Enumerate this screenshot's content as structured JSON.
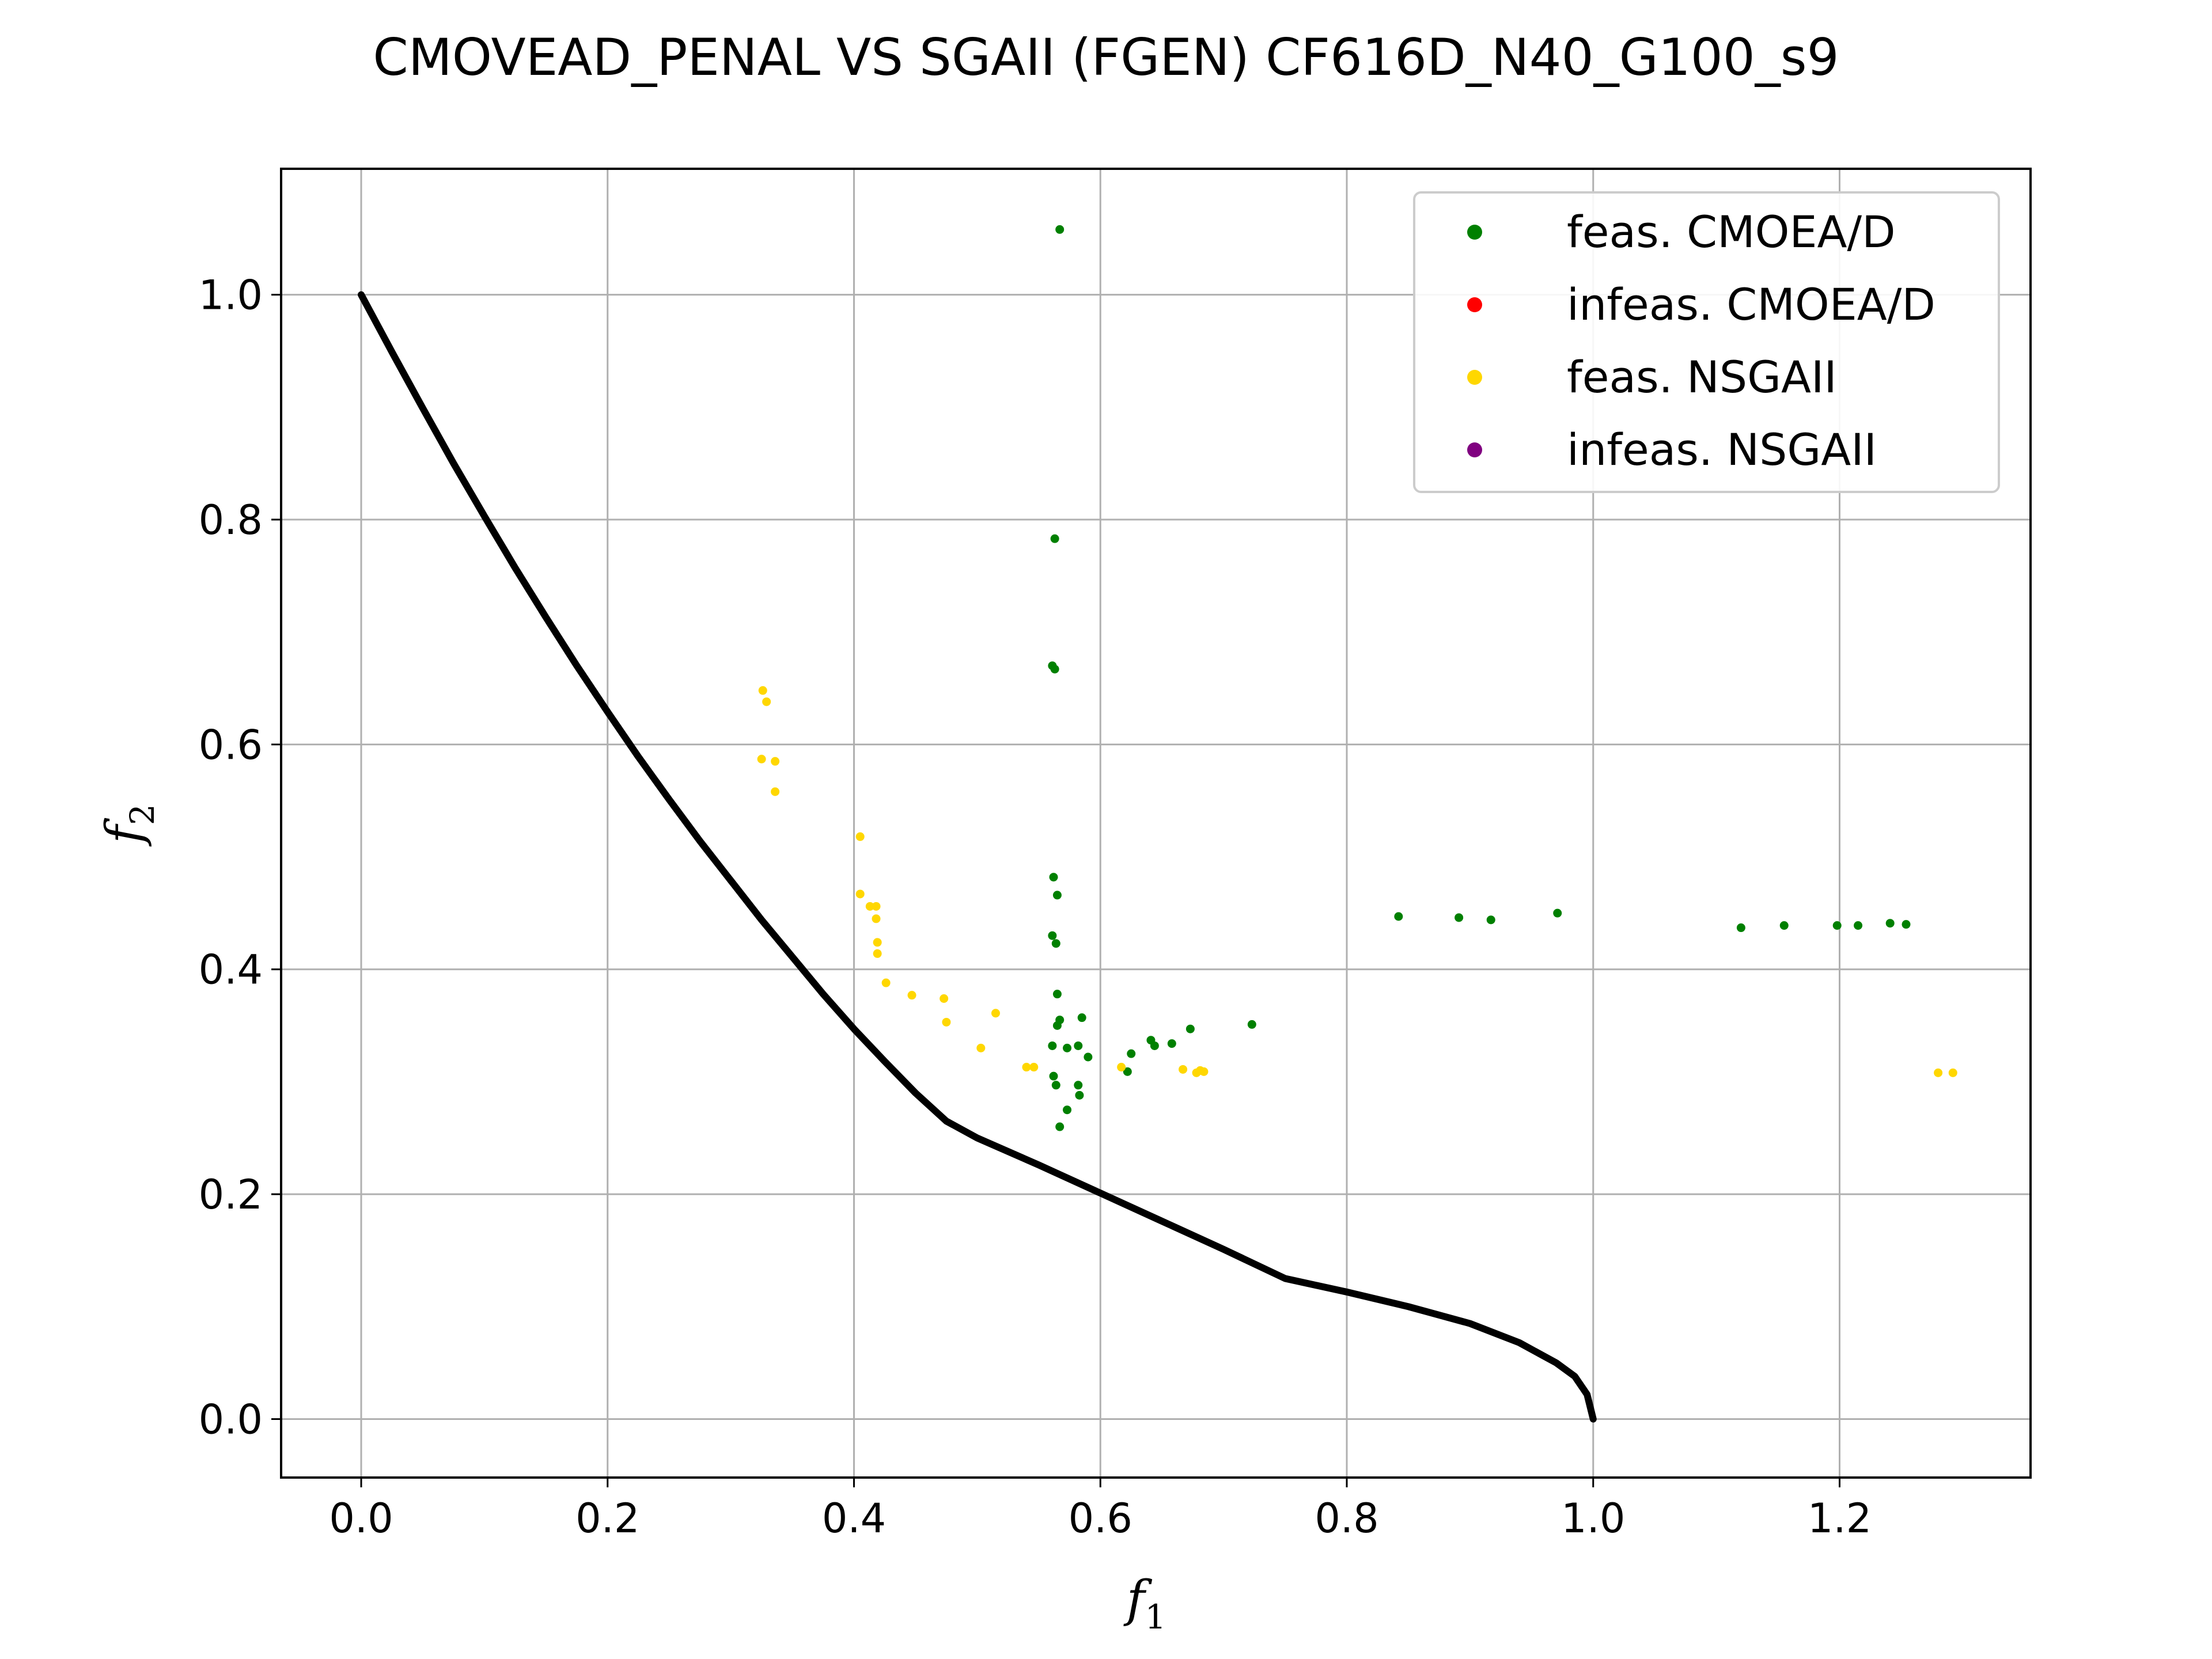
{
  "chart_data": {
    "type": "scatter",
    "title": "CMOVEAD_PENAL VS SGAII (FGEN) CF616D_N40_G100_s9",
    "xlabel": "f",
    "xlabel_sub": "1",
    "ylabel": "f",
    "ylabel_sub": "2",
    "xlim": [
      -0.065,
      1.355
    ],
    "ylim": [
      -0.052,
      1.112
    ],
    "xticks": [
      0.0,
      0.2,
      0.4,
      0.6,
      0.8,
      1.0,
      1.2
    ],
    "xtick_labels": [
      "0.0",
      "0.2",
      "0.4",
      "0.6",
      "0.8",
      "1.0",
      "1.2"
    ],
    "yticks": [
      0.0,
      0.2,
      0.4,
      0.6,
      0.8,
      1.0
    ],
    "ytick_labels": [
      "0.0",
      "0.2",
      "0.4",
      "0.6",
      "0.8",
      "1.0"
    ],
    "grid": true,
    "legend_position": "top-right",
    "legend": [
      {
        "label": "feas. CMOEA/D",
        "color": "#008000"
      },
      {
        "label": "infeas. CMOEA/D",
        "color": "#ff0000"
      },
      {
        "label": "feas. NSGAII",
        "color": "#ffd700"
      },
      {
        "label": "infeas. NSGAII",
        "color": "#800080"
      }
    ],
    "pareto_front": {
      "color": "#000000",
      "points": [
        [
          0.0,
          1.0
        ],
        [
          0.025,
          0.949
        ],
        [
          0.05,
          0.899
        ],
        [
          0.075,
          0.85
        ],
        [
          0.1,
          0.803
        ],
        [
          0.125,
          0.757
        ],
        [
          0.15,
          0.713
        ],
        [
          0.175,
          0.67
        ],
        [
          0.2,
          0.629
        ],
        [
          0.225,
          0.589
        ],
        [
          0.25,
          0.551
        ],
        [
          0.275,
          0.514
        ],
        [
          0.3,
          0.479
        ],
        [
          0.325,
          0.444
        ],
        [
          0.35,
          0.411
        ],
        [
          0.375,
          0.378
        ],
        [
          0.4,
          0.347
        ],
        [
          0.425,
          0.318
        ],
        [
          0.45,
          0.29
        ],
        [
          0.475,
          0.265
        ],
        [
          0.5,
          0.25
        ],
        [
          0.55,
          0.226
        ],
        [
          0.6,
          0.201
        ],
        [
          0.65,
          0.176
        ],
        [
          0.7,
          0.151
        ],
        [
          0.75,
          0.125
        ],
        [
          0.8,
          0.113
        ],
        [
          0.85,
          0.1
        ],
        [
          0.9,
          0.085
        ],
        [
          0.94,
          0.068
        ],
        [
          0.97,
          0.05
        ],
        [
          0.985,
          0.038
        ],
        [
          0.995,
          0.022
        ],
        [
          1.0,
          0.0
        ]
      ]
    },
    "series": [
      {
        "name": "feas. CMOEA/D",
        "color": "#008000",
        "points": [
          [
            0.567,
            1.058
          ],
          [
            0.563,
            0.783
          ],
          [
            0.561,
            0.67
          ],
          [
            0.563,
            0.667
          ],
          [
            0.562,
            0.482
          ],
          [
            0.565,
            0.466
          ],
          [
            0.561,
            0.43
          ],
          [
            0.564,
            0.423
          ],
          [
            0.565,
            0.378
          ],
          [
            0.567,
            0.355
          ],
          [
            0.565,
            0.35
          ],
          [
            0.585,
            0.357
          ],
          [
            0.561,
            0.332
          ],
          [
            0.573,
            0.33
          ],
          [
            0.582,
            0.332
          ],
          [
            0.59,
            0.322
          ],
          [
            0.562,
            0.305
          ],
          [
            0.564,
            0.297
          ],
          [
            0.582,
            0.297
          ],
          [
            0.583,
            0.288
          ],
          [
            0.573,
            0.275
          ],
          [
            0.567,
            0.26
          ],
          [
            0.622,
            0.309
          ],
          [
            0.625,
            0.325
          ],
          [
            0.641,
            0.337
          ],
          [
            0.644,
            0.332
          ],
          [
            0.658,
            0.334
          ],
          [
            0.673,
            0.347
          ],
          [
            0.723,
            0.351
          ],
          [
            0.842,
            0.447
          ],
          [
            0.891,
            0.446
          ],
          [
            0.917,
            0.444
          ],
          [
            0.971,
            0.45
          ],
          [
            1.12,
            0.437
          ],
          [
            1.155,
            0.439
          ],
          [
            1.198,
            0.439
          ],
          [
            1.215,
            0.439
          ],
          [
            1.241,
            0.441
          ],
          [
            1.254,
            0.44
          ]
        ]
      },
      {
        "name": "infeas. CMOEA/D",
        "color": "#ff0000",
        "points": []
      },
      {
        "name": "feas. NSGAII",
        "color": "#ffd700",
        "points": [
          [
            0.326,
            0.648
          ],
          [
            0.329,
            0.638
          ],
          [
            0.325,
            0.587
          ],
          [
            0.336,
            0.585
          ],
          [
            0.336,
            0.558
          ],
          [
            0.405,
            0.518
          ],
          [
            0.405,
            0.467
          ],
          [
            0.413,
            0.456
          ],
          [
            0.418,
            0.456
          ],
          [
            0.418,
            0.445
          ],
          [
            0.419,
            0.424
          ],
          [
            0.419,
            0.414
          ],
          [
            0.426,
            0.388
          ],
          [
            0.447,
            0.377
          ],
          [
            0.473,
            0.374
          ],
          [
            0.475,
            0.353
          ],
          [
            0.503,
            0.33
          ],
          [
            0.515,
            0.361
          ],
          [
            0.54,
            0.313
          ],
          [
            0.546,
            0.313
          ],
          [
            0.617,
            0.313
          ],
          [
            0.667,
            0.311
          ],
          [
            0.678,
            0.308
          ],
          [
            0.681,
            0.31
          ],
          [
            0.684,
            0.309
          ],
          [
            1.28,
            0.308
          ],
          [
            1.292,
            0.308
          ]
        ]
      },
      {
        "name": "infeas. NSGAII",
        "color": "#800080",
        "points": []
      }
    ]
  }
}
